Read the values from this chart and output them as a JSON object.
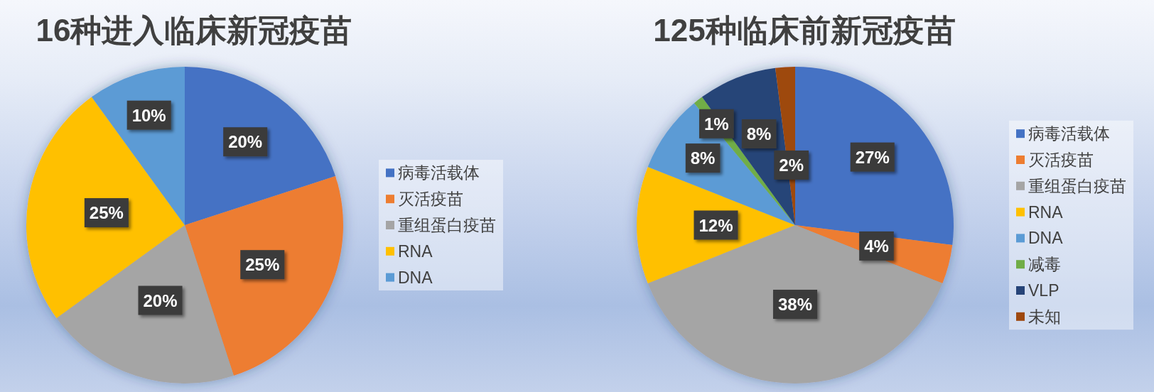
{
  "chart_data": [
    {
      "type": "pie",
      "title": "16种进入临床新冠疫苗",
      "categories": [
        "病毒活载体",
        "灭活疫苗",
        "重组蛋白疫苗",
        "RNA",
        "DNA"
      ],
      "values": [
        20,
        25,
        20,
        25,
        10
      ],
      "value_labels": [
        "20%",
        "25%",
        "20%",
        "25%",
        "10%"
      ],
      "colors": [
        "#4472c4",
        "#ed7d31",
        "#a5a5a5",
        "#ffc000",
        "#5b9bd5"
      ],
      "legend": "right"
    },
    {
      "type": "pie",
      "title": "125种临床前新冠疫苗",
      "categories": [
        "病毒活载体",
        "灭活疫苗",
        "重组蛋白疫苗",
        "RNA",
        "DNA",
        "减毒",
        "VLP",
        "未知"
      ],
      "values": [
        27,
        4,
        38,
        12,
        8,
        1,
        8,
        2
      ],
      "value_labels": [
        "27%",
        "4%",
        "38%",
        "12%",
        "8%",
        "1%",
        "8%",
        "2%"
      ],
      "colors": [
        "#4472c4",
        "#ed7d31",
        "#a5a5a5",
        "#ffc000",
        "#5b9bd5",
        "#70ad47",
        "#264478",
        "#9e480e"
      ],
      "legend": "right"
    }
  ]
}
